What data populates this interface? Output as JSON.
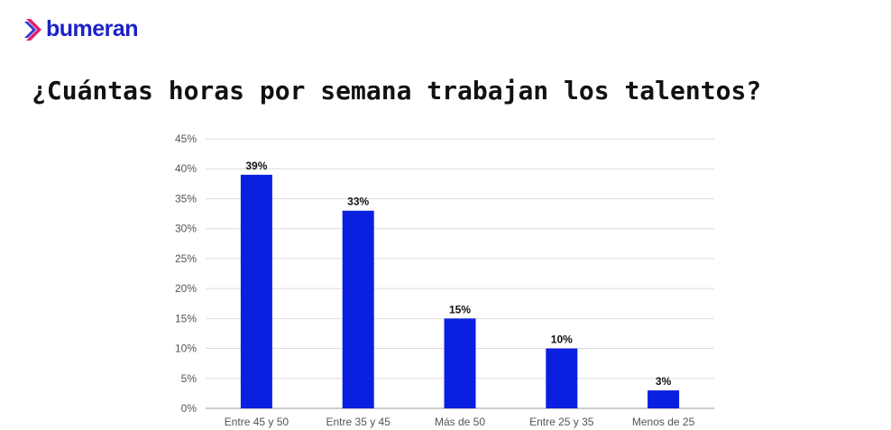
{
  "brand": {
    "name": "bumeran"
  },
  "colors": {
    "bar": "#0b1fe0",
    "grid": "#dddddd"
  },
  "chart_data": {
    "type": "bar",
    "title": "¿Cuántas horas por semana trabajan los talentos?",
    "categories": [
      "Entre 45 y 50",
      "Entre 35 y 45",
      "Más de 50",
      "Entre 25 y 35",
      "Menos de 25"
    ],
    "values": [
      39,
      33,
      15,
      10,
      3
    ],
    "data_labels": [
      "39%",
      "33%",
      "15%",
      "10%",
      "3%"
    ],
    "yticks": [
      "0%",
      "5%",
      "10%",
      "15%",
      "20%",
      "25%",
      "30%",
      "35%",
      "40%",
      "45%"
    ],
    "ylim": [
      0,
      45
    ],
    "grid": true,
    "xlabel": "",
    "ylabel": ""
  }
}
